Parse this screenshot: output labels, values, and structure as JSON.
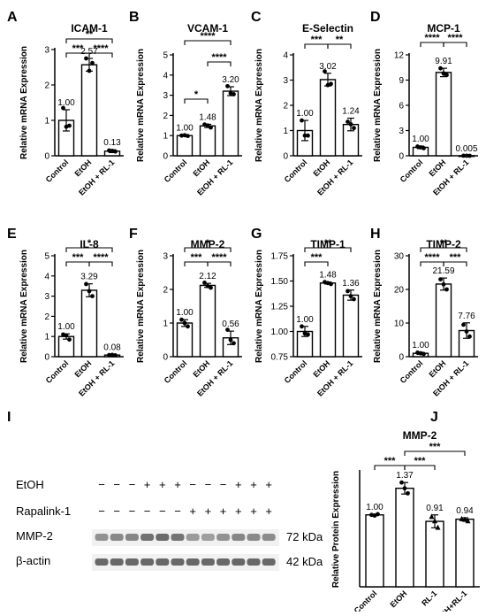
{
  "chart_data": [
    {
      "letter": "A",
      "type": "bar",
      "title": "ICAM-1",
      "ylabel": "Relative mRNA Expression",
      "categories": [
        "Control",
        "EtOH",
        "EtOH + RL-1"
      ],
      "values": [
        1.0,
        2.57,
        0.13
      ],
      "value_labels": [
        "1.00",
        "2.57",
        "0.13"
      ],
      "points": [
        [
          1.35,
          0.85,
          0.82
        ],
        [
          2.75,
          2.62,
          2.4
        ],
        [
          0.15,
          0.12,
          0.14
        ]
      ],
      "errors": [
        0.3,
        0.18,
        0.04
      ],
      "ylim": [
        0,
        3
      ],
      "yticks": [
        "0",
        "1",
        "2",
        "3"
      ],
      "significance": [
        {
          "from": 0,
          "to": 2,
          "label": "**"
        },
        {
          "from": 0,
          "to": 1,
          "label": "***"
        },
        {
          "from": 1,
          "to": 2,
          "label": "****"
        }
      ]
    },
    {
      "letter": "B",
      "type": "bar",
      "title": "VCAM-1",
      "ylabel": "Relative mRNA Expression",
      "categories": [
        "Control",
        "EtOH",
        "EtOH + RL-1"
      ],
      "values": [
        1.0,
        1.48,
        3.2
      ],
      "value_labels": [
        "1.00",
        "1.48",
        "3.20"
      ],
      "points": [
        [
          1.0,
          0.98,
          1.02
        ],
        [
          1.55,
          1.4,
          1.5
        ],
        [
          3.45,
          3.05,
          3.1
        ]
      ],
      "errors": [
        0.03,
        0.08,
        0.22
      ],
      "ylim": [
        0,
        5
      ],
      "yticks": [
        "0",
        "1",
        "2",
        "3",
        "4",
        "5"
      ],
      "significance": [
        {
          "from": 0,
          "to": 2,
          "label": "****"
        },
        {
          "from": 1,
          "to": 2,
          "label": "****"
        },
        {
          "from": 0,
          "to": 1,
          "label": "*"
        }
      ]
    },
    {
      "letter": "C",
      "type": "bar",
      "title": "E-Selectin",
      "ylabel": "Relative mRNA Expression",
      "categories": [
        "Control",
        "EtOH",
        "EtOH + RL-1"
      ],
      "values": [
        1.0,
        3.02,
        1.24
      ],
      "value_labels": [
        "1.00",
        "3.02",
        "1.24"
      ],
      "points": [
        [
          1.4,
          0.8,
          0.8
        ],
        [
          3.35,
          2.85,
          2.8
        ],
        [
          1.35,
          1.1,
          1.25
        ]
      ],
      "errors": [
        0.4,
        0.25,
        0.25
      ],
      "ylim": [
        0,
        4
      ],
      "yticks": [
        "0",
        "1",
        "2",
        "3",
        "4"
      ],
      "significance": [
        {
          "from": 0,
          "to": 1,
          "label": "***"
        },
        {
          "from": 1,
          "to": 2,
          "label": "**"
        }
      ]
    },
    {
      "letter": "D",
      "type": "bar",
      "title": "MCP-1",
      "ylabel": "Relative mRNA Expression",
      "categories": [
        "Control",
        "EtOH",
        "EtOH + RL-1"
      ],
      "values": [
        1.0,
        9.91,
        0.005
      ],
      "value_labels": [
        "1.00",
        "9.91",
        "0.005"
      ],
      "points": [
        [
          1.1,
          0.9,
          1.0
        ],
        [
          10.4,
          9.6,
          9.8
        ],
        [
          0.01,
          0.0,
          0.005
        ]
      ],
      "errors": [
        0.15,
        0.5,
        0.01
      ],
      "ylim": [
        0,
        12
      ],
      "yticks": [
        "0",
        "3",
        "6",
        "9",
        "12"
      ],
      "significance": [
        {
          "from": 0,
          "to": 1,
          "label": "****"
        },
        {
          "from": 1,
          "to": 2,
          "label": "****"
        }
      ]
    },
    {
      "letter": "E",
      "type": "bar",
      "title": "IL-8",
      "ylabel": "Relative mRNA Expression",
      "categories": [
        "Control",
        "EtOH",
        "EtOH + RL-1"
      ],
      "values": [
        1.0,
        3.29,
        0.08
      ],
      "value_labels": [
        "1.00",
        "3.29",
        "0.08"
      ],
      "points": [
        [
          1.1,
          0.85,
          1.05
        ],
        [
          3.6,
          3.0,
          3.25
        ],
        [
          0.08,
          0.07,
          0.09
        ]
      ],
      "errors": [
        0.13,
        0.32,
        0.02
      ],
      "ylim": [
        0,
        5
      ],
      "yticks": [
        "0",
        "1",
        "2",
        "3",
        "4",
        "5"
      ],
      "significance": [
        {
          "from": 0,
          "to": 2,
          "label": "*"
        },
        {
          "from": 0,
          "to": 1,
          "label": "***"
        },
        {
          "from": 1,
          "to": 2,
          "label": "****"
        }
      ]
    },
    {
      "letter": "F",
      "type": "bar",
      "title": "MMP-2",
      "ylabel": "Relative mRNA Expression",
      "categories": [
        "Control",
        "EtOH",
        "EtOH + RL-1"
      ],
      "values": [
        1.0,
        2.12,
        0.56
      ],
      "value_labels": [
        "1.00",
        "2.12",
        "0.56"
      ],
      "points": [
        [
          1.1,
          0.9,
          1.0
        ],
        [
          2.2,
          2.05,
          2.1
        ],
        [
          0.8,
          0.4,
          0.5
        ]
      ],
      "errors": [
        0.1,
        0.06,
        0.2
      ],
      "ylim": [
        0,
        3
      ],
      "yticks": [
        "0",
        "1",
        "2",
        "3"
      ],
      "significance": [
        {
          "from": 0,
          "to": 2,
          "label": "*"
        },
        {
          "from": 0,
          "to": 1,
          "label": "***"
        },
        {
          "from": 1,
          "to": 2,
          "label": "****"
        }
      ]
    },
    {
      "letter": "G",
      "type": "bar",
      "title": "TIMP-1",
      "ylabel": "Relative mRNA Expression",
      "categories": [
        "Control",
        "EtOH",
        "EtOH + RL-1"
      ],
      "values": [
        1.0,
        1.48,
        1.36
      ],
      "value_labels": [
        "1.00",
        "1.48",
        "1.36"
      ],
      "points": [
        [
          1.05,
          0.97,
          0.98
        ],
        [
          1.49,
          1.47,
          1.48
        ],
        [
          1.4,
          1.32,
          1.35
        ]
      ],
      "errors": [
        0.05,
        0.01,
        0.05
      ],
      "ylim": [
        0.75,
        1.75
      ],
      "yticks": [
        "0.75",
        "1.00",
        "1.25",
        "1.50",
        "1.75"
      ],
      "significance": [
        {
          "from": 0,
          "to": 2,
          "label": "**"
        },
        {
          "from": 0,
          "to": 1,
          "label": "***"
        }
      ]
    },
    {
      "letter": "H",
      "type": "bar",
      "title": "TIMP-2",
      "ylabel": "Relative mRNA Expression",
      "categories": [
        "Control",
        "EtOH",
        "EtOH + RL-1"
      ],
      "values": [
        1.0,
        21.59,
        7.76
      ],
      "value_labels": [
        "1.00",
        "21.59",
        "7.76"
      ],
      "points": [
        [
          1.2,
          0.8,
          1.0
        ],
        [
          23.0,
          20.0,
          21.5
        ],
        [
          9.5,
          6.0,
          7.5
        ]
      ],
      "errors": [
        0.3,
        1.8,
        2.3
      ],
      "ylim": [
        0,
        30
      ],
      "yticks": [
        "0",
        "10",
        "20",
        "30"
      ],
      "significance": [
        {
          "from": 0,
          "to": 2,
          "label": "**"
        },
        {
          "from": 0,
          "to": 1,
          "label": "****"
        },
        {
          "from": 1,
          "to": 2,
          "label": "***"
        }
      ]
    },
    {
      "letter": "J",
      "type": "bar",
      "title": "MMP-2",
      "ylabel": "Relative Protein Expression",
      "categories": [
        "Control",
        "EtOH",
        "RL-1",
        "EtOH+RL-1"
      ],
      "values": [
        1.0,
        1.37,
        0.91,
        0.94
      ],
      "value_labels": [
        "1.00",
        "1.37",
        "0.91",
        "0.94"
      ],
      "points": [
        [
          1.0,
          1.01,
          0.99
        ],
        [
          1.45,
          1.3,
          1.37
        ],
        [
          0.98,
          0.83,
          0.92
        ],
        [
          0.95,
          0.92,
          0.94
        ]
      ],
      "errors": [
        0.01,
        0.08,
        0.09,
        0.02
      ],
      "ylim": [
        0,
        1.6
      ],
      "yticks": [],
      "significance": [
        {
          "from": 1,
          "to": 3,
          "label": "***"
        },
        {
          "from": 0,
          "to": 1,
          "label": "***"
        },
        {
          "from": 1,
          "to": 2,
          "label": "***"
        }
      ]
    }
  ],
  "blot": {
    "letter": "I",
    "rows": [
      {
        "label": "EtOH",
        "signs": [
          "−",
          "−",
          "−",
          "+",
          "+",
          "+",
          "−",
          "−",
          "−",
          "+",
          "+",
          "+"
        ]
      },
      {
        "label": "Rapalink-1",
        "signs": [
          "−",
          "−",
          "−",
          "−",
          "−",
          "−",
          "+",
          "+",
          "+",
          "+",
          "+",
          "+"
        ]
      }
    ],
    "bands": [
      {
        "label": "MMP-2",
        "kda": "72 kDa"
      },
      {
        "label": "β-actin",
        "kda": "42 kDa"
      }
    ]
  }
}
